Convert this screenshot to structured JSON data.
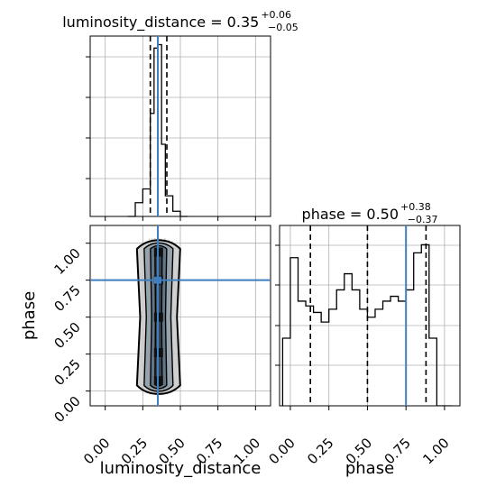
{
  "chart_data": {
    "type": "corner",
    "parameters": [
      "luminosity_distance",
      "phase"
    ],
    "truths": {
      "luminosity_distance": 0.35,
      "phase": 0.75
    },
    "colors": {
      "truth": "#3f7fbf",
      "hist": "#000000",
      "grid": "#b0b0b0",
      "contour_fill": "#5a6f7f"
    },
    "panels": [
      {
        "id": "luminosity_distance_hist",
        "type": "histogram",
        "title": {
          "text": "luminosity_distance = 0.35",
          "sup": "+0.06",
          "sub": "−0.05"
        },
        "x_range": [
          -0.1,
          1.1
        ],
        "y_range": [
          0,
          1.05
        ],
        "bin_edges": [
          0.15,
          0.2,
          0.25,
          0.3,
          0.325,
          0.35,
          0.375,
          0.4,
          0.45,
          0.5,
          0.55
        ],
        "bin_values": [
          0.0,
          0.08,
          0.16,
          0.6,
          0.98,
          1.0,
          0.42,
          0.12,
          0.03,
          0.0
        ],
        "quantiles": [
          0.3,
          0.35,
          0.41
        ],
        "grid": true
      },
      {
        "id": "joint_2d",
        "type": "scatter_contour",
        "x_range": [
          -0.1,
          1.1
        ],
        "y_range": [
          -0.1,
          1.12
        ],
        "x_ticks": [
          "0.00",
          "0.25",
          "0.50",
          "0.75",
          "1.00"
        ],
        "y_ticks": [
          "0.00",
          "0.25",
          "0.50",
          "0.75",
          "1.00"
        ],
        "x_label": "luminosity_distance",
        "y_label": "phase",
        "x_tick_values": [
          0.0,
          0.25,
          0.5,
          0.75,
          1.0
        ],
        "y_tick_values": [
          0.0,
          0.25,
          0.5,
          0.75,
          1.0
        ],
        "truth_marker": [
          0.35,
          0.75
        ],
        "grid": true
      },
      {
        "id": "phase_hist",
        "type": "histogram",
        "title": {
          "text": "phase = 0.50",
          "sup": "+0.38",
          "sub": "−0.37"
        },
        "x_range": [
          -0.07,
          1.1
        ],
        "y_range": [
          0,
          1.12
        ],
        "x_ticks": [
          "0.00",
          "0.25",
          "0.50",
          "0.75",
          "1.00"
        ],
        "x_tick_values": [
          0.0,
          0.25,
          0.5,
          0.75,
          1.0
        ],
        "x_label": "phase",
        "bin_edges": [
          -0.05,
          0.0,
          0.05,
          0.1,
          0.15,
          0.2,
          0.25,
          0.3,
          0.35,
          0.4,
          0.45,
          0.5,
          0.55,
          0.6,
          0.65,
          0.7,
          0.75,
          0.8,
          0.85,
          0.9,
          0.95,
          1.0,
          1.05
        ],
        "bin_values": [
          0.42,
          0.92,
          0.65,
          0.62,
          0.58,
          0.52,
          0.6,
          0.72,
          0.82,
          0.72,
          0.6,
          0.55,
          0.6,
          0.65,
          0.68,
          0.65,
          0.72,
          0.95,
          1.0,
          0.42,
          0.0,
          0.0
        ],
        "quantiles": [
          0.13,
          0.5,
          0.88
        ],
        "grid": true
      }
    ]
  }
}
